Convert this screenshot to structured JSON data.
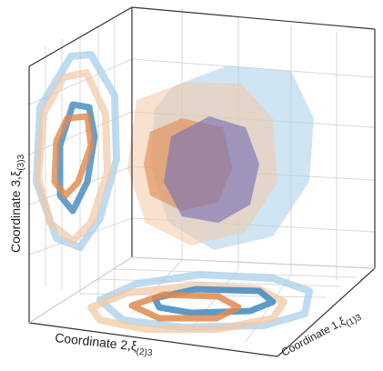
{
  "chart_data": {
    "type": "3d-polytope-projections",
    "title": "",
    "grid": true,
    "axes": {
      "x": {
        "label_main": "Coordinate 1,",
        "label_symbol": "ξ",
        "label_sub": "(1)3"
      },
      "y": {
        "label_main": "Coordinate 2,",
        "label_symbol": "ξ",
        "label_sub": "(2)3"
      },
      "z": {
        "label_main": "Coordinate 3,",
        "label_symbol": "ξ",
        "label_sub": "(3)3"
      }
    },
    "series": [
      {
        "color": "#e08a4e",
        "light": "#f2c9a6"
      },
      {
        "color": "#4a8fc4",
        "light": "#a9cfea"
      },
      {
        "color": "#7b72b0",
        "light": "#b7b3d8"
      }
    ],
    "projections": [
      "back wall (left)",
      "floor (bottom)"
    ],
    "bodies": [
      {
        "series": 1,
        "shade": "light",
        "role": "outer region"
      },
      {
        "series": 0,
        "shade": "light",
        "role": "outer region"
      },
      {
        "series": 0,
        "shade": "dark",
        "role": "inner region"
      },
      {
        "series": 2,
        "shade": "dark",
        "role": "inner region"
      }
    ]
  }
}
